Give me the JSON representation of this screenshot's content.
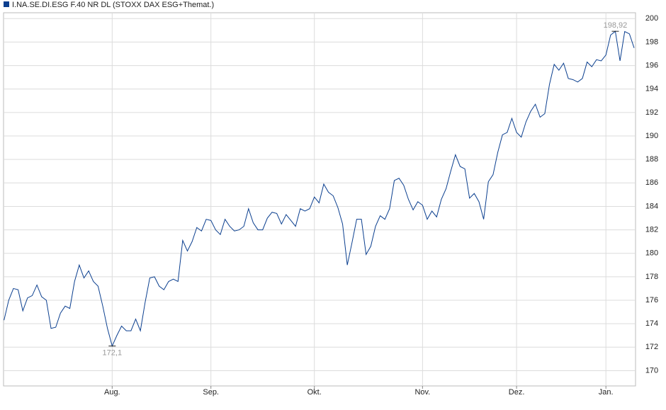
{
  "chart_data": {
    "type": "line",
    "series": [
      {
        "name": "I.NA.SE.DI.ESG F.40 NR DL (STOXX DAX ESG+Themat.)",
        "color": "#0b3f8f",
        "values": [
          174.3,
          176,
          177,
          176.9,
          175.1,
          176.2,
          176.4,
          177.3,
          176.3,
          176,
          173.6,
          173.7,
          174.9,
          175.5,
          175.3,
          177.6,
          179,
          177.9,
          178.5,
          177.6,
          177.2,
          175.5,
          173.6,
          172.1,
          173,
          173.8,
          173.4,
          173.4,
          174.4,
          173.4,
          175.8,
          177.9,
          178,
          177.2,
          176.9,
          177.6,
          177.8,
          177.6,
          181.1,
          180.2,
          181,
          182.2,
          181.9,
          182.9,
          182.8,
          182,
          181.6,
          182.9,
          182.3,
          181.9,
          182,
          182.3,
          183.8,
          182.6,
          182,
          182,
          183,
          183.5,
          183.4,
          182.5,
          183.3,
          182.8,
          182.3,
          183.8,
          183.6,
          183.8,
          184.8,
          184.3,
          185.9,
          185.2,
          184.9,
          183.9,
          182.5,
          179,
          180.9,
          182.9,
          182.9,
          179.9,
          180.6,
          182.3,
          183.2,
          182.9,
          183.8,
          186.2,
          186.4,
          185.8,
          184.6,
          183.7,
          184.4,
          184.1,
          182.9,
          183.6,
          183.1,
          184.6,
          185.5,
          187,
          188.4,
          187.4,
          187.2,
          184.7,
          185.1,
          184.4,
          182.9,
          186.1,
          186.7,
          188.6,
          190.1,
          190.3,
          191.5,
          190.3,
          189.9,
          191.2,
          192.1,
          192.7,
          191.6,
          191.9,
          194.4,
          196.1,
          195.6,
          196.2,
          194.9,
          194.8,
          194.6,
          194.9,
          196.3,
          195.9,
          196.5,
          196.4,
          196.9,
          198.6,
          198.92,
          196.4,
          198.9,
          198.7,
          197.5
        ]
      }
    ],
    "xlim": [
      -0.1,
      134.3
    ],
    "xticks": [
      {
        "value": 23,
        "label": "Aug."
      },
      {
        "value": 44,
        "label": "Sep."
      },
      {
        "value": 66,
        "label": "Okt."
      },
      {
        "value": 89,
        "label": "Nov."
      },
      {
        "value": 109,
        "label": "Dez."
      },
      {
        "value": 128,
        "label": "Jan."
      }
    ],
    "ylim": [
      168.7,
      200.5
    ],
    "yticks": [
      170,
      172,
      174,
      176,
      178,
      180,
      182,
      184,
      186,
      188,
      190,
      192,
      194,
      196,
      198,
      200
    ],
    "annotations": [
      {
        "x": 130,
        "y": 198.92,
        "label": "198,92"
      },
      {
        "x": 23,
        "y": 172.1,
        "label": "172,1"
      }
    ],
    "grid": true
  }
}
